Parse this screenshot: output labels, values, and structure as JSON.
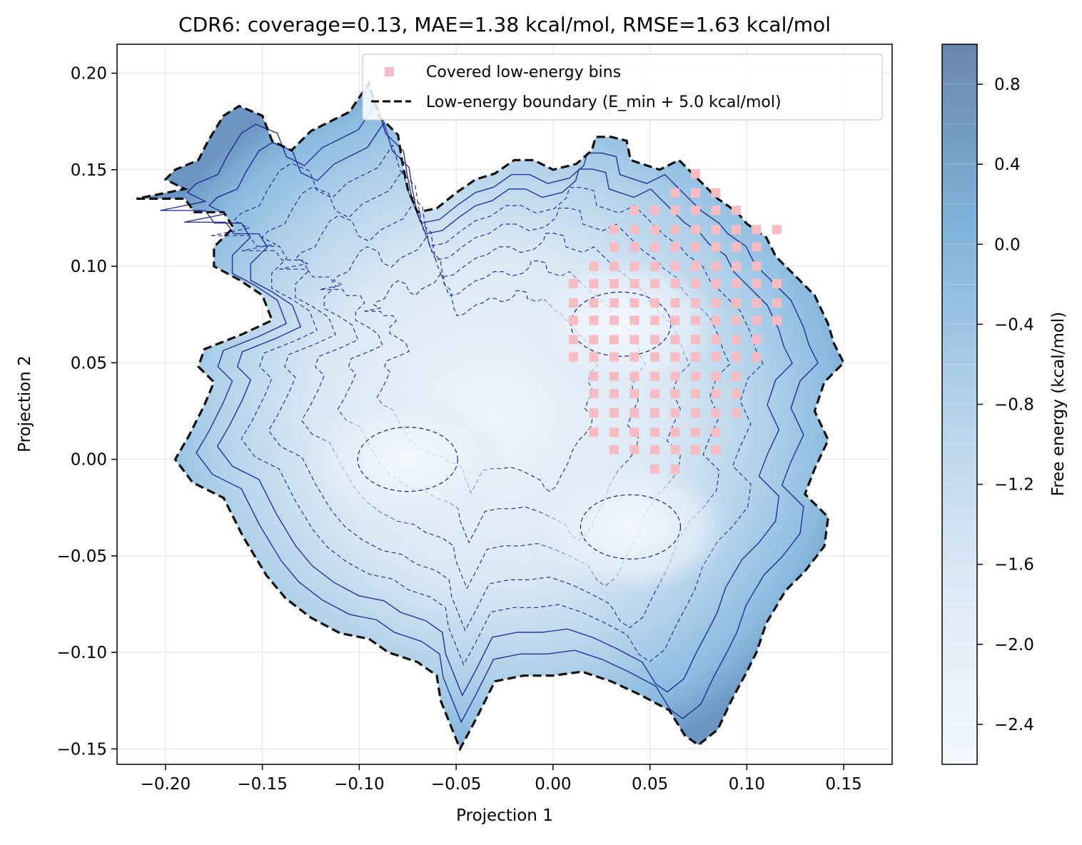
{
  "chart_data": {
    "type": "heatmap",
    "title": "CDR6: coverage=0.13, MAE=1.38 kcal/mol, RMSE=1.63 kcal/mol",
    "xlabel": "Projection 1",
    "ylabel": "Projection 2",
    "xlim": [
      -0.225,
      0.175
    ],
    "ylim": [
      -0.158,
      0.215
    ],
    "x_ticks": [
      -0.2,
      -0.15,
      -0.1,
      -0.05,
      0.0,
      0.05,
      0.1,
      0.15
    ],
    "y_ticks": [
      -0.15,
      -0.1,
      -0.05,
      0.0,
      0.05,
      0.1,
      0.15,
      0.2
    ],
    "x_tick_labels": [
      "−0.20",
      "−0.15",
      "−0.10",
      "−0.05",
      "0.00",
      "0.05",
      "0.10",
      "0.15"
    ],
    "y_tick_labels": [
      "−0.15",
      "−0.10",
      "−0.05",
      "0.00",
      "0.05",
      "0.10",
      "0.15",
      "0.20"
    ],
    "grid": true,
    "colorbar": {
      "label": "Free energy (kcal/mol)",
      "range": [
        -2.6,
        1.0
      ],
      "ticks": [
        -2.4,
        -2.0,
        -1.6,
        -1.2,
        -0.8,
        -0.4,
        0.0,
        0.4,
        0.8
      ],
      "tick_labels": [
        "−2.4",
        "−2.0",
        "−1.6",
        "−1.2",
        "−0.8",
        "−0.4",
        "0.0",
        "0.4",
        "0.8"
      ],
      "color_low": "#f3f8fd",
      "color_mid": "#7fb3d9",
      "color_high": "#4e6f9f"
    },
    "energy_minima": [
      {
        "x": -0.075,
        "y": 0.0
      },
      {
        "x": 0.04,
        "y": -0.035
      },
      {
        "x": 0.035,
        "y": 0.07
      }
    ],
    "covered_bins": {
      "color": "#f6bcc4",
      "x_min": 0.0105,
      "x_step": 0.0105,
      "rows": [
        {
          "y": 0.148,
          "x_from": 0.0735,
          "x_to": 0.0735
        },
        {
          "y": 0.138,
          "x_from": 0.063,
          "x_to": 0.084
        },
        {
          "y": 0.129,
          "x_from": 0.042,
          "x_to": 0.0945
        },
        {
          "y": 0.119,
          "x_from": 0.0315,
          "x_to": 0.1155
        },
        {
          "y": 0.11,
          "x_from": 0.0315,
          "x_to": 0.105
        },
        {
          "y": 0.1,
          "x_from": 0.021,
          "x_to": 0.105
        },
        {
          "y": 0.091,
          "x_from": 0.0105,
          "x_to": 0.1155
        },
        {
          "y": 0.081,
          "x_from": 0.0105,
          "x_to": 0.1155
        },
        {
          "y": 0.072,
          "x_from": 0.0105,
          "x_to": 0.1155
        },
        {
          "y": 0.062,
          "x_from": 0.0105,
          "x_to": 0.105
        },
        {
          "y": 0.053,
          "x_from": 0.0105,
          "x_to": 0.105
        },
        {
          "y": 0.043,
          "x_from": 0.021,
          "x_to": 0.0945
        },
        {
          "y": 0.034,
          "x_from": 0.021,
          "x_to": 0.0945
        },
        {
          "y": 0.024,
          "x_from": 0.021,
          "x_to": 0.0945
        },
        {
          "y": 0.014,
          "x_from": 0.021,
          "x_to": 0.084
        },
        {
          "y": 0.005,
          "x_from": 0.0315,
          "x_to": 0.084
        },
        {
          "y": -0.005,
          "x_from": 0.0525,
          "x_to": 0.063
        }
      ]
    },
    "low_energy_boundary": [
      [
        -0.215,
        0.135
      ],
      [
        -0.19,
        0.135
      ],
      [
        -0.185,
        0.128
      ],
      [
        -0.17,
        0.128
      ],
      [
        -0.165,
        0.12
      ],
      [
        -0.175,
        0.11
      ],
      [
        -0.175,
        0.1
      ],
      [
        -0.162,
        0.093
      ],
      [
        -0.15,
        0.085
      ],
      [
        -0.145,
        0.072
      ],
      [
        -0.16,
        0.065
      ],
      [
        -0.18,
        0.057
      ],
      [
        -0.183,
        0.048
      ],
      [
        -0.175,
        0.04
      ],
      [
        -0.18,
        0.028
      ],
      [
        -0.188,
        0.012
      ],
      [
        -0.195,
        0.0
      ],
      [
        -0.186,
        -0.012
      ],
      [
        -0.17,
        -0.02
      ],
      [
        -0.16,
        -0.04
      ],
      [
        -0.148,
        -0.06
      ],
      [
        -0.138,
        -0.072
      ],
      [
        -0.125,
        -0.082
      ],
      [
        -0.11,
        -0.09
      ],
      [
        -0.095,
        -0.093
      ],
      [
        -0.085,
        -0.1
      ],
      [
        -0.07,
        -0.105
      ],
      [
        -0.06,
        -0.112
      ],
      [
        -0.058,
        -0.125
      ],
      [
        -0.052,
        -0.14
      ],
      [
        -0.048,
        -0.15
      ],
      [
        -0.04,
        -0.135
      ],
      [
        -0.03,
        -0.115
      ],
      [
        -0.015,
        -0.112
      ],
      [
        0.0,
        -0.112
      ],
      [
        0.015,
        -0.11
      ],
      [
        0.03,
        -0.115
      ],
      [
        0.045,
        -0.122
      ],
      [
        0.06,
        -0.13
      ],
      [
        0.068,
        -0.143
      ],
      [
        0.075,
        -0.148
      ],
      [
        0.085,
        -0.14
      ],
      [
        0.092,
        -0.125
      ],
      [
        0.1,
        -0.11
      ],
      [
        0.105,
        -0.1
      ],
      [
        0.11,
        -0.085
      ],
      [
        0.12,
        -0.068
      ],
      [
        0.13,
        -0.058
      ],
      [
        0.14,
        -0.045
      ],
      [
        0.142,
        -0.03
      ],
      [
        0.13,
        -0.018
      ],
      [
        0.135,
        -0.005
      ],
      [
        0.142,
        0.01
      ],
      [
        0.135,
        0.025
      ],
      [
        0.14,
        0.04
      ],
      [
        0.15,
        0.05
      ],
      [
        0.145,
        0.06
      ],
      [
        0.142,
        0.07
      ],
      [
        0.135,
        0.085
      ],
      [
        0.125,
        0.095
      ],
      [
        0.115,
        0.105
      ],
      [
        0.11,
        0.115
      ],
      [
        0.1,
        0.122
      ],
      [
        0.095,
        0.128
      ],
      [
        0.085,
        0.135
      ],
      [
        0.075,
        0.145
      ],
      [
        0.065,
        0.155
      ],
      [
        0.055,
        0.15
      ],
      [
        0.04,
        0.155
      ],
      [
        0.038,
        0.165
      ],
      [
        0.03,
        0.167
      ],
      [
        0.022,
        0.167
      ],
      [
        0.02,
        0.16
      ],
      [
        0.012,
        0.153
      ],
      [
        0.0,
        0.15
      ],
      [
        -0.01,
        0.155
      ],
      [
        -0.02,
        0.155
      ],
      [
        -0.03,
        0.148
      ],
      [
        -0.04,
        0.145
      ],
      [
        -0.05,
        0.138
      ],
      [
        -0.06,
        0.13
      ],
      [
        -0.07,
        0.128
      ],
      [
        -0.075,
        0.14
      ],
      [
        -0.078,
        0.155
      ],
      [
        -0.08,
        0.168
      ],
      [
        -0.09,
        0.178
      ],
      [
        -0.095,
        0.195
      ],
      [
        -0.105,
        0.18
      ],
      [
        -0.115,
        0.175
      ],
      [
        -0.125,
        0.17
      ],
      [
        -0.135,
        0.16
      ],
      [
        -0.145,
        0.165
      ],
      [
        -0.15,
        0.178
      ],
      [
        -0.162,
        0.183
      ],
      [
        -0.17,
        0.178
      ],
      [
        -0.178,
        0.165
      ],
      [
        -0.183,
        0.155
      ],
      [
        -0.195,
        0.15
      ],
      [
        -0.2,
        0.145
      ],
      [
        -0.19,
        0.14
      ],
      [
        -0.215,
        0.135
      ]
    ],
    "legend": {
      "placement": "top-right",
      "entries": [
        {
          "label": "Covered low-energy bins",
          "marker": "square",
          "color": "#f6bcc4"
        },
        {
          "label": "Low-energy boundary (E_min + 5.0 kcal/mol)",
          "marker": "dashed-line",
          "color": "#000000"
        }
      ]
    }
  }
}
